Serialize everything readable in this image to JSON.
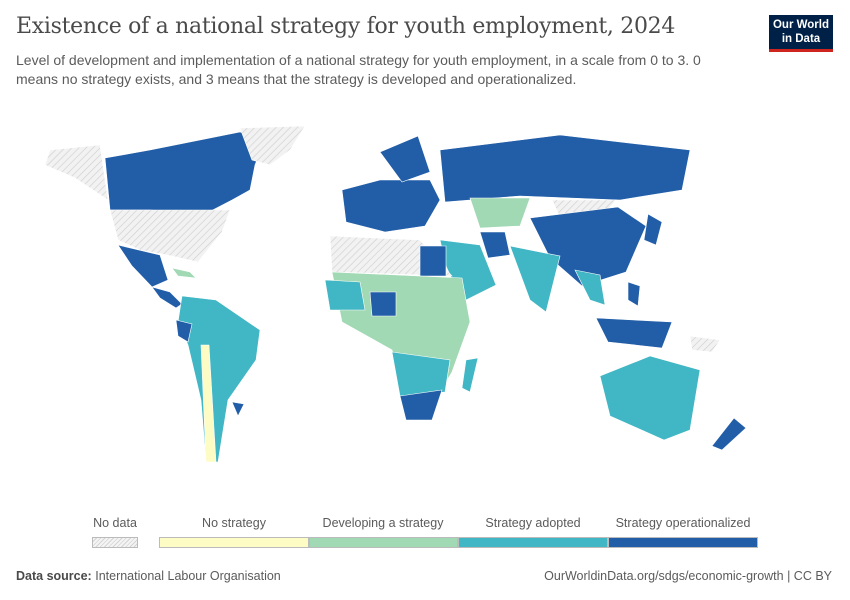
{
  "header": {
    "title": "Existence of a national strategy for youth employment, 2024",
    "subtitle": "Level of development and implementation of a national strategy for youth employment, in a scale from 0 to 3. 0 means no strategy exists, and 3 means that the strategy is developed and operationalized.",
    "logo": "Our World in Data"
  },
  "legend": {
    "no_data": "No data",
    "bins": [
      {
        "label": "No strategy",
        "value": 0,
        "color": "#fefcc5"
      },
      {
        "label": "Developing a strategy",
        "value": 1,
        "color": "#a1d9b4"
      },
      {
        "label": "Strategy adopted",
        "value": 2,
        "color": "#41b6c4"
      },
      {
        "label": "Strategy operationalized",
        "value": 3,
        "color": "#225ea8"
      }
    ]
  },
  "map_data": {
    "no_data_color": "#e8e8e8",
    "regions": {
      "Canada": 3,
      "Alaska": null,
      "United States": null,
      "Greenland": null,
      "Mexico": 3,
      "Central America": 3,
      "Caribbean": 1,
      "South America": 2,
      "Ecuador": 3,
      "Chile": 0,
      "Uruguay": 3,
      "Europe": 3,
      "Scandinavia": 3,
      "Russia": 3,
      "Central Asia": 1,
      "Mongolia": null,
      "China": 3,
      "Middle East": 2,
      "Iran": 3,
      "India": 2,
      "Southeast Asia": 2,
      "Indonesia": 3,
      "Philippines": 3,
      "Japan": 3,
      "North Africa": null,
      "Egypt": 3,
      "Sub-Saharan Africa": 1,
      "West Africa": 2,
      "Nigeria": 3,
      "Southern Africa": 2,
      "South Africa": 3,
      "Madagascar": 2,
      "Australia": 2,
      "New Zealand": 3,
      "Papua New Guinea": null
    }
  },
  "footer": {
    "source_label": "Data source:",
    "source": "International Labour Organisation",
    "url": "OurWorldinData.org/sdgs/economic-growth | CC BY"
  }
}
